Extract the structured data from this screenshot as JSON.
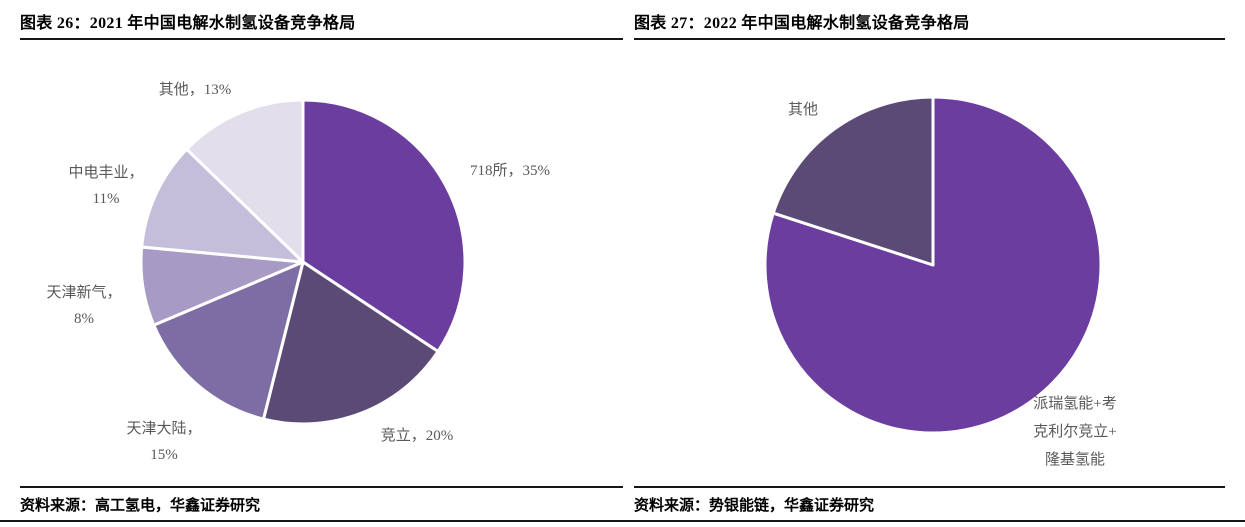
{
  "figure_left": {
    "title": "图表 26：2021 年中国电解水制氢设备竞争格局",
    "source": "资料来源：高工氢电，华鑫证券研究"
  },
  "figure_right": {
    "title": "图表 27：2022 年中国电解水制氢设备竞争格局",
    "source": "资料来源：势银能链，华鑫证券研究"
  },
  "chart_data": [
    {
      "type": "pie",
      "title": "图表 26：2021 年中国电解水制氢设备竞争格局",
      "start_angle_deg": 0,
      "direction": "clockwise",
      "legend_position": "outside-labels",
      "slices": [
        {
          "label": "718所",
          "value": 35,
          "display": "718所，35%",
          "color": "#6A3D9E"
        },
        {
          "label": "竞立",
          "value": 20,
          "display": "竞立，20%",
          "color": "#5A4A75"
        },
        {
          "label": "天津大陆",
          "value": 15,
          "display": "天津大陆，\n15%",
          "color": "#7E6DA5"
        },
        {
          "label": "天津新气",
          "value": 8,
          "display": "天津新气，\n8%",
          "color": "#A79BC6"
        },
        {
          "label": "中电丰业",
          "value": 11,
          "display": "中电丰业，\n11%",
          "color": "#C5BEDB"
        },
        {
          "label": "其他",
          "value": 13,
          "display": "其他，13%",
          "color": "#E2DEEC"
        }
      ]
    },
    {
      "type": "pie",
      "title": "图表 27：2022 年中国电解水制氢设备竞争格局",
      "start_angle_deg": 0,
      "direction": "clockwise",
      "legend_position": "outside-labels",
      "slices": [
        {
          "label": "派瑞氢能+考克利尔竞立+隆基氢能",
          "value": 80,
          "display": "派瑞氢能+考\n克利尔竞立+\n隆基氢能",
          "color": "#6A3D9E"
        },
        {
          "label": "其他",
          "value": 20,
          "display": "其他",
          "color": "#5A4A75"
        }
      ]
    }
  ],
  "colors": {
    "brand_purple": "#6A3D9E",
    "dark_muted_purple": "#5A4A75",
    "label_gray": "#595959",
    "rule_black": "#161616"
  }
}
